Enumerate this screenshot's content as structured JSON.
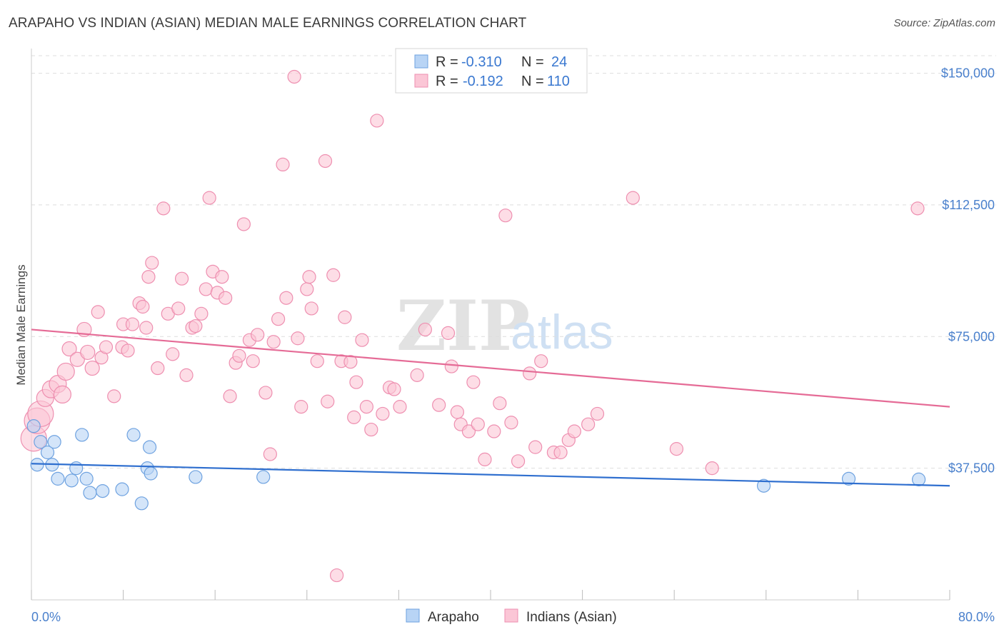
{
  "title": "ARAPAHO VS INDIAN (ASIAN) MEDIAN MALE EARNINGS CORRELATION CHART",
  "source": "Source: ZipAtlas.com",
  "watermark": {
    "zip": "ZIP",
    "atlas": "atlas"
  },
  "colors": {
    "arapaho_fill": "#b8d4f5",
    "arapaho_stroke": "#6ea2e0",
    "arapaho_line": "#2f6fcf",
    "indian_fill": "#fbc6d6",
    "indian_stroke": "#ee8fb0",
    "indian_line": "#e56b96",
    "axis_text": "#4a80cc",
    "grid": "#dddddd"
  },
  "legend": {
    "rows": [
      {
        "r_label": "R =",
        "r_value": "-0.310",
        "n_label": "N =",
        "n_value": "24"
      },
      {
        "r_label": "R =",
        "r_value": "-0.192",
        "n_label": "N =",
        "n_value": "110"
      }
    ]
  },
  "bottom_legend": {
    "items": [
      "Arapaho",
      "Indians (Asian)"
    ]
  },
  "chart_data": {
    "type": "scatter",
    "xlabel": "",
    "ylabel": "Median Male Earnings",
    "xlim": [
      0,
      80
    ],
    "ylim": [
      0,
      155000
    ],
    "x_tick_labels": [
      "0.0%",
      "80.0%"
    ],
    "y_ticks": [
      37500,
      75000,
      112500,
      150000
    ],
    "y_tick_labels": [
      "$37,500",
      "$75,000",
      "$112,500",
      "$150,000"
    ],
    "grid": true,
    "legend_position": "top-center",
    "series": [
      {
        "name": "Arapaho",
        "trend": {
          "x": [
            0,
            80
          ],
          "y": [
            38800,
            32500
          ]
        },
        "points": [
          [
            0.2,
            49500,
            9
          ],
          [
            0.8,
            45000,
            9
          ],
          [
            0.5,
            38500,
            9
          ],
          [
            1.4,
            42000,
            9
          ],
          [
            1.8,
            38500,
            9
          ],
          [
            2.0,
            45000,
            9
          ],
          [
            2.3,
            34500,
            9
          ],
          [
            3.5,
            34000,
            9
          ],
          [
            3.9,
            37500,
            9
          ],
          [
            4.4,
            47000,
            9
          ],
          [
            4.8,
            34500,
            9
          ],
          [
            5.1,
            30500,
            9
          ],
          [
            6.2,
            31000,
            9
          ],
          [
            7.9,
            31500,
            9
          ],
          [
            8.9,
            47000,
            9
          ],
          [
            9.6,
            27500,
            9
          ],
          [
            10.1,
            37500,
            9
          ],
          [
            10.3,
            43500,
            9
          ],
          [
            10.4,
            36000,
            9
          ],
          [
            14.3,
            35000,
            9
          ],
          [
            20.2,
            35000,
            9
          ],
          [
            63.8,
            32500,
            9
          ],
          [
            71.2,
            34500,
            9
          ],
          [
            77.3,
            34300,
            9
          ]
        ]
      },
      {
        "name": "Indians (Asian)",
        "trend": {
          "x": [
            0,
            80
          ],
          "y": [
            77000,
            55000
          ]
        },
        "points": [
          [
            0.2,
            46000,
            18
          ],
          [
            0.5,
            51000,
            18
          ],
          [
            0.8,
            53000,
            18
          ],
          [
            1.2,
            57500,
            12
          ],
          [
            1.7,
            60000,
            12
          ],
          [
            2.3,
            61500,
            12
          ],
          [
            2.7,
            58500,
            12
          ],
          [
            3.0,
            65000,
            12
          ],
          [
            3.3,
            71500,
            10
          ],
          [
            4.0,
            68500,
            10
          ],
          [
            4.6,
            77000,
            10
          ],
          [
            4.9,
            70500,
            10
          ],
          [
            5.3,
            66000,
            10
          ],
          [
            5.8,
            82000,
            9
          ],
          [
            6.1,
            69000,
            9
          ],
          [
            6.5,
            72000,
            9
          ],
          [
            7.2,
            58000,
            9
          ],
          [
            7.9,
            72000,
            9
          ],
          [
            8.0,
            78500,
            9
          ],
          [
            8.4,
            71000,
            9
          ],
          [
            8.8,
            78500,
            9
          ],
          [
            9.4,
            84500,
            9
          ],
          [
            9.7,
            83500,
            9
          ],
          [
            10.0,
            77500,
            9
          ],
          [
            10.2,
            92000,
            9
          ],
          [
            10.5,
            96000,
            9
          ],
          [
            11.0,
            66000,
            9
          ],
          [
            11.5,
            111500,
            9
          ],
          [
            11.9,
            81500,
            9
          ],
          [
            12.3,
            70000,
            9
          ],
          [
            12.8,
            83000,
            9
          ],
          [
            13.1,
            91500,
            9
          ],
          [
            13.5,
            64000,
            9
          ],
          [
            14.0,
            77500,
            9
          ],
          [
            14.3,
            78000,
            9
          ],
          [
            14.8,
            81500,
            9
          ],
          [
            15.2,
            88500,
            9
          ],
          [
            15.5,
            114500,
            9
          ],
          [
            15.8,
            93500,
            9
          ],
          [
            16.2,
            87500,
            9
          ],
          [
            16.6,
            92000,
            9
          ],
          [
            16.9,
            86000,
            9
          ],
          [
            17.3,
            58000,
            9
          ],
          [
            17.8,
            67500,
            9
          ],
          [
            18.1,
            69500,
            9
          ],
          [
            18.5,
            107000,
            9
          ],
          [
            19.0,
            74000,
            9
          ],
          [
            19.3,
            68000,
            9
          ],
          [
            19.7,
            75500,
            9
          ],
          [
            20.4,
            59000,
            9
          ],
          [
            20.8,
            41500,
            9
          ],
          [
            21.1,
            73500,
            9
          ],
          [
            21.5,
            80000,
            9
          ],
          [
            21.9,
            124000,
            9
          ],
          [
            22.2,
            86000,
            9
          ],
          [
            22.9,
            149000,
            9
          ],
          [
            23.2,
            74500,
            9
          ],
          [
            23.5,
            55000,
            9
          ],
          [
            24.0,
            88500,
            9
          ],
          [
            24.2,
            92000,
            9
          ],
          [
            24.4,
            83000,
            9
          ],
          [
            24.9,
            68000,
            9
          ],
          [
            25.6,
            125000,
            9
          ],
          [
            25.8,
            56500,
            9
          ],
          [
            26.3,
            92500,
            9
          ],
          [
            26.6,
            7000,
            9
          ],
          [
            27.0,
            68000,
            9
          ],
          [
            27.3,
            80500,
            9
          ],
          [
            27.8,
            67800,
            9
          ],
          [
            28.1,
            52000,
            9
          ],
          [
            28.3,
            62000,
            9
          ],
          [
            28.8,
            74000,
            9
          ],
          [
            29.2,
            55000,
            9
          ],
          [
            29.6,
            48500,
            9
          ],
          [
            30.1,
            136500,
            9
          ],
          [
            30.6,
            53000,
            9
          ],
          [
            31.2,
            60500,
            9
          ],
          [
            31.6,
            60000,
            9
          ],
          [
            32.1,
            55000,
            9
          ],
          [
            33.6,
            64000,
            9
          ],
          [
            34.3,
            77000,
            9
          ],
          [
            35.5,
            55500,
            9
          ],
          [
            36.3,
            76000,
            9
          ],
          [
            36.6,
            66500,
            9
          ],
          [
            37.1,
            53500,
            9
          ],
          [
            37.4,
            50000,
            9
          ],
          [
            38.1,
            48000,
            9
          ],
          [
            38.5,
            62000,
            9
          ],
          [
            38.9,
            50000,
            9
          ],
          [
            39.5,
            40000,
            9
          ],
          [
            40.3,
            48000,
            9
          ],
          [
            40.8,
            56000,
            9
          ],
          [
            41.3,
            109500,
            9
          ],
          [
            41.8,
            50500,
            9
          ],
          [
            42.4,
            39500,
            9
          ],
          [
            43.4,
            64500,
            9
          ],
          [
            43.9,
            43500,
            9
          ],
          [
            44.4,
            68000,
            9
          ],
          [
            45.5,
            42000,
            9
          ],
          [
            46.1,
            42000,
            9
          ],
          [
            46.8,
            45500,
            9
          ],
          [
            47.3,
            48000,
            9
          ],
          [
            48.5,
            50000,
            9
          ],
          [
            49.3,
            53000,
            9
          ],
          [
            52.4,
            114500,
            9
          ],
          [
            56.2,
            43000,
            9
          ],
          [
            59.3,
            37500,
            9
          ],
          [
            77.2,
            111500,
            9
          ]
        ]
      }
    ]
  }
}
